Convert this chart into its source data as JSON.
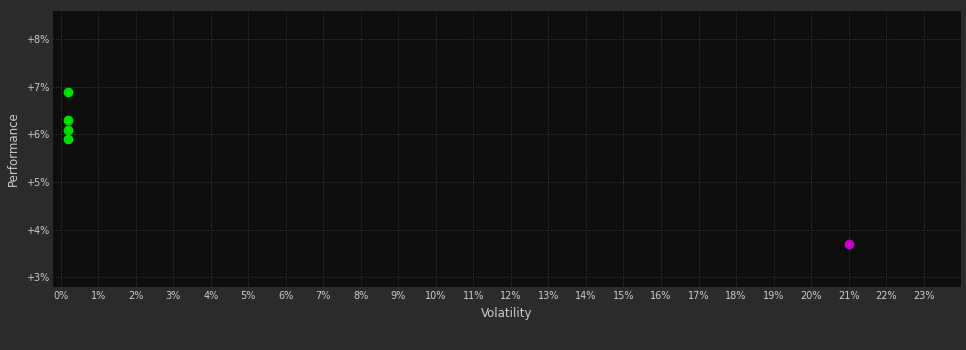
{
  "xlabel": "Volatility",
  "ylabel": "Performance",
  "bg_color": "#2b2b2b",
  "plot_bg_color": "#0d0d0d",
  "grid_color": "#3a3a3a",
  "text_color": "#cccccc",
  "xlim": [
    -0.002,
    0.24
  ],
  "ylim": [
    0.028,
    0.086
  ],
  "xticks": [
    0.0,
    0.01,
    0.02,
    0.03,
    0.04,
    0.05,
    0.06,
    0.07,
    0.08,
    0.09,
    0.1,
    0.11,
    0.12,
    0.13,
    0.14,
    0.15,
    0.16,
    0.17,
    0.18,
    0.19,
    0.2,
    0.21,
    0.22,
    0.23
  ],
  "yticks": [
    0.03,
    0.04,
    0.05,
    0.06,
    0.07,
    0.08
  ],
  "green_points": [
    [
      0.002,
      0.069
    ],
    [
      0.002,
      0.063
    ],
    [
      0.002,
      0.061
    ],
    [
      0.002,
      0.059
    ]
  ],
  "magenta_points": [
    [
      0.21,
      0.037
    ]
  ],
  "green_color": "#00dd00",
  "magenta_color": "#cc00cc",
  "marker_size": 6
}
